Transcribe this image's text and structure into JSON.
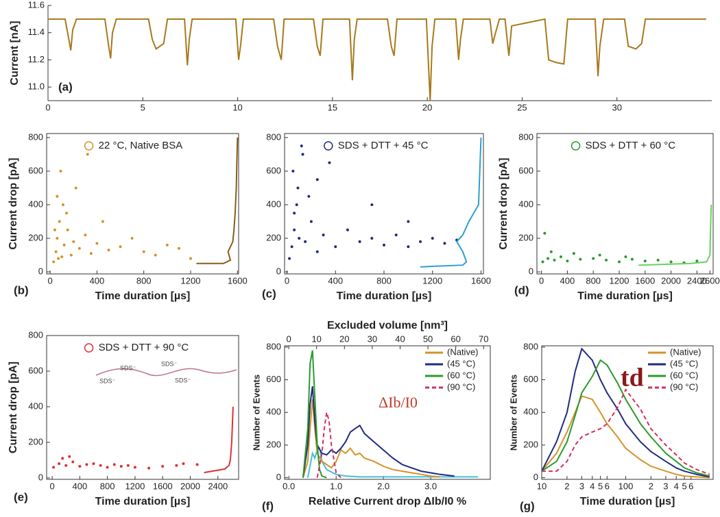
{
  "chart_data": [
    {
      "type": "line",
      "panel_label": "(a)",
      "ylabel": "Current [nA]",
      "color": "#a8781c",
      "x": [
        0,
        0.9,
        1.1,
        1.2,
        1.3,
        1.5,
        3.0,
        3.2,
        3.3,
        3.4,
        3.6,
        5.3,
        5.5,
        5.7,
        5.9,
        6.1,
        6.3,
        7.2,
        7.35,
        7.45,
        7.6,
        9.9,
        10.05,
        10.15,
        10.3,
        11.9,
        12.1,
        12.3,
        12.45,
        14.0,
        14.2,
        14.35,
        14.5,
        15.9,
        16.05,
        16.15,
        16.3,
        17.9,
        18.1,
        18.25,
        18.4,
        19.95,
        20.15,
        20.25,
        20.4,
        21.5,
        21.65,
        21.75,
        21.9,
        23.3,
        23.45,
        23.6,
        23.8,
        24.1,
        24.3,
        24.45,
        26.2,
        26.4,
        26.8,
        27.2,
        27.4,
        28.85,
        29.0,
        29.1,
        29.3,
        30.4,
        30.6,
        31.0,
        31.3,
        31.5,
        34.7
      ],
      "values": [
        11.5,
        11.5,
        11.35,
        11.27,
        11.42,
        11.5,
        11.5,
        11.3,
        11.21,
        11.4,
        11.5,
        11.5,
        11.35,
        11.28,
        11.3,
        11.32,
        11.5,
        11.5,
        11.16,
        11.35,
        11.5,
        11.5,
        11.2,
        11.3,
        11.5,
        11.5,
        11.3,
        11.2,
        11.5,
        11.5,
        11.3,
        11.23,
        11.5,
        11.5,
        11.05,
        11.35,
        11.5,
        11.5,
        11.3,
        11.23,
        11.5,
        11.5,
        10.9,
        11.3,
        11.5,
        11.5,
        11.2,
        11.35,
        11.5,
        11.5,
        11.32,
        11.4,
        11.5,
        11.5,
        11.23,
        11.45,
        11.5,
        11.2,
        11.18,
        11.17,
        11.5,
        11.5,
        11.08,
        11.3,
        11.5,
        11.5,
        11.3,
        11.28,
        11.32,
        11.5,
        11.5
      ],
      "xlim": [
        0,
        35
      ],
      "xticks": [
        0,
        5,
        10,
        15,
        20,
        25,
        30
      ],
      "ylim": [
        10.9,
        11.6
      ],
      "yticks": [
        {
          "value": 11,
          "label": "11.0"
        },
        11.2,
        11.4,
        11.6
      ]
    },
    {
      "type": "scatter",
      "panel_label": "(b)",
      "xlabel": "Time duration [µs]",
      "ylabel": "Current drop [pA]",
      "legend": "upper center",
      "series": [
        {
          "name": "22 °C, Native BSA",
          "color": "#d4922a",
          "x": [
            30,
            50,
            60,
            80,
            100,
            120,
            150,
            180,
            200,
            250,
            300,
            350,
            400,
            450,
            500,
            600,
            700,
            800,
            900,
            1000,
            1100,
            1200,
            60,
            90,
            140,
            220,
            320,
            70,
            40,
            110
          ],
          "values": [
            60,
            120,
            200,
            300,
            90,
            160,
            250,
            100,
            180,
            140,
            220,
            110,
            170,
            300,
            130,
            150,
            200,
            120,
            100,
            160,
            140,
            80,
            450,
            600,
            350,
            500,
            700,
            80,
            250,
            400
          ]
        },
        {
          "style": "line",
          "color": "#8a5a1a",
          "x": [
            1250,
            1480,
            1540,
            1520,
            1560,
            1570,
            1580,
            1590,
            1595,
            1600
          ],
          "values": [
            50,
            50,
            70,
            120,
            180,
            250,
            350,
            500,
            650,
            800
          ]
        }
      ],
      "xlim": [
        -30,
        1610
      ],
      "xticks": [
        0,
        400,
        800,
        1200,
        1600
      ],
      "ylim": [
        -12,
        824
      ],
      "yticks": [
        0,
        200,
        400,
        600,
        800
      ]
    },
    {
      "type": "scatter",
      "panel_label": "(c)",
      "xlabel": "Time duration [µs]",
      "legend": "upper center",
      "series": [
        {
          "name": "SDS + DTT + 45 °C",
          "color": "#1f2a80",
          "x": [
            20,
            40,
            60,
            80,
            100,
            150,
            200,
            250,
            300,
            400,
            500,
            600,
            700,
            800,
            900,
            1000,
            1100,
            1200,
            1300,
            1400,
            50,
            90,
            130,
            180,
            250,
            350,
            120,
            60,
            700,
            1000
          ],
          "values": [
            80,
            150,
            250,
            400,
            200,
            180,
            300,
            120,
            220,
            150,
            250,
            180,
            200,
            160,
            220,
            150,
            180,
            200,
            170,
            190,
            600,
            500,
            700,
            450,
            550,
            650,
            750,
            350,
            400,
            300
          ]
        },
        {
          "style": "line",
          "color": "#2aa0d0",
          "x": [
            1100,
            1450,
            1480,
            1450,
            1400,
            1450,
            1500,
            1580,
            1590,
            1600
          ],
          "values": [
            30,
            40,
            60,
            120,
            180,
            220,
            300,
            400,
            600,
            800
          ]
        }
      ],
      "xlim": [
        -20,
        1620
      ],
      "xticks": [
        0,
        400,
        800,
        1200,
        1600
      ],
      "ylim": [
        -12,
        824
      ],
      "yticks": [
        0,
        200,
        400,
        600,
        800
      ]
    },
    {
      "type": "scatter",
      "panel_label": "(d)",
      "xlabel": "Time duration [µs]",
      "ylabel": "Current drop [pA]",
      "legend": "upper center",
      "series": [
        {
          "name": "SDS + DTT + 60 °C",
          "color": "#2a9a2a",
          "x": [
            20,
            100,
            200,
            300,
            400,
            600,
            800,
            1000,
            1200,
            1400,
            1600,
            1800,
            2000,
            2200,
            2400,
            50,
            150,
            500,
            900,
            1300
          ],
          "values": [
            60,
            80,
            70,
            90,
            65,
            75,
            80,
            70,
            60,
            75,
            65,
            70,
            60,
            55,
            65,
            230,
            120,
            110,
            100,
            90
          ]
        },
        {
          "style": "line",
          "color": "#6ad060",
          "x": [
            1500,
            2300,
            2550,
            2600,
            2610,
            2620
          ],
          "values": [
            40,
            50,
            60,
            100,
            250,
            400
          ]
        }
      ],
      "xlim": [
        -70,
        2650
      ],
      "xticks": [
        0,
        400,
        800,
        1200,
        1600,
        2000,
        2400,
        2600
      ],
      "ylim": [
        -12,
        824
      ],
      "yticks": [
        0,
        200,
        400,
        600,
        800
      ]
    },
    {
      "type": "scatter",
      "panel_label": "(e)",
      "xlabel": "Time duration [µs]",
      "ylabel": "Current drop [pA]",
      "legend": "upper center",
      "annotations": [
        "SDS⁻",
        "SDS⁻",
        "SDS⁻",
        "SDS⁻"
      ],
      "series": [
        {
          "name": "SDS + DTT + 90 °C",
          "color": "#e03030",
          "x": [
            20,
            100,
            200,
            300,
            400,
            500,
            600,
            700,
            800,
            900,
            1000,
            1100,
            1200,
            1400,
            1600,
            1800,
            1900,
            2100,
            250,
            150
          ],
          "values": [
            60,
            80,
            70,
            90,
            65,
            75,
            80,
            70,
            60,
            75,
            65,
            70,
            60,
            55,
            65,
            70,
            80,
            75,
            120,
            110
          ]
        },
        {
          "style": "line",
          "color": "#e03030",
          "x": [
            2200,
            2500,
            2560,
            2580,
            2600,
            2610,
            2620
          ],
          "values": [
            30,
            50,
            70,
            100,
            200,
            300,
            400
          ]
        }
      ],
      "xlim": [
        -80,
        2700
      ],
      "xticks": [
        0,
        400,
        800,
        1200,
        1600,
        2000,
        2400
      ],
      "ylim": [
        -8,
        800
      ],
      "yticks": [
        0,
        200,
        400,
        600,
        800
      ]
    },
    {
      "type": "line",
      "panel_label": "(f)",
      "xlabel": "Relative Current drop ΔIb/I0 %",
      "ylabel": "Number of Events",
      "x2label": "Excluded volume [nm³]",
      "annotation": "ΔIb/I0",
      "legend": "upper right",
      "series": [
        {
          "color": "#40c0d8",
          "x": [
            0.4,
            0.5,
            0.55,
            0.6,
            0.65,
            0.7,
            0.8,
            1.0,
            1.2,
            1.5,
            2.0,
            2.5,
            3.0,
            3.5,
            4.0
          ],
          "values": [
            0,
            150,
            120,
            170,
            180,
            100,
            50,
            20,
            10,
            5,
            5,
            5,
            5,
            5,
            5
          ]
        },
        {
          "name": "(Native)",
          "color": "#d4922a",
          "x": [
            0.3,
            0.4,
            0.45,
            0.5,
            0.55,
            0.6,
            0.7,
            0.8,
            0.9,
            1.0,
            1.1,
            1.2,
            1.3,
            1.4,
            1.5,
            1.6,
            1.8,
            2.0,
            2.2,
            2.4,
            2.6,
            2.8,
            3.0,
            3.2
          ],
          "values": [
            0,
            100,
            300,
            480,
            300,
            150,
            100,
            80,
            60,
            100,
            170,
            150,
            180,
            140,
            150,
            120,
            100,
            70,
            50,
            40,
            30,
            20,
            10,
            5
          ]
        },
        {
          "name": "(45 °C)",
          "color": "#1f2a80",
          "x": [
            0.3,
            0.4,
            0.45,
            0.5,
            0.55,
            0.6,
            0.7,
            0.8,
            0.9,
            1.0,
            1.1,
            1.2,
            1.3,
            1.4,
            1.5,
            1.6,
            1.8,
            2.0,
            2.2,
            2.4,
            2.6,
            2.8,
            3.0,
            3.2,
            3.5
          ],
          "values": [
            0,
            200,
            450,
            560,
            350,
            200,
            150,
            140,
            170,
            150,
            180,
            220,
            280,
            300,
            320,
            270,
            220,
            170,
            120,
            80,
            60,
            40,
            30,
            20,
            10
          ]
        },
        {
          "name": "(60 °C)",
          "color": "#2a9a2a",
          "x": [
            0.3,
            0.4,
            0.45,
            0.5,
            0.55,
            0.6,
            0.65,
            0.7,
            0.8
          ],
          "values": [
            0,
            300,
            700,
            780,
            500,
            200,
            50,
            10,
            0
          ]
        },
        {
          "name": "(90 °C)",
          "color": "#d0305a",
          "dash": true,
          "x": [
            0.6,
            0.7,
            0.75,
            0.8,
            0.85,
            0.9,
            1.0,
            1.1
          ],
          "values": [
            0,
            150,
            300,
            400,
            350,
            200,
            30,
            0
          ]
        }
      ],
      "xlim": [
        -0.09,
        4.26
      ],
      "xticks": [
        {
          "value": 0,
          "label": "0.0"
        },
        {
          "value": 1,
          "label": "1.0"
        },
        {
          "value": 2,
          "label": "2.0"
        },
        {
          "value": 3,
          "label": "3.0"
        }
      ],
      "x2lim": [
        -1.5,
        72.4
      ],
      "x2ticks": [
        0,
        10,
        20,
        30,
        40,
        50,
        60,
        70
      ],
      "ylim": [
        -10,
        808
      ],
      "yticks": [
        0,
        200,
        400,
        600,
        800
      ]
    },
    {
      "type": "line",
      "panel_label": "(g)",
      "xlabel": "Time duration [µs]",
      "ylabel": "Number of Events",
      "annotation": "td",
      "legend": "upper right",
      "xlog": true,
      "x": [
        10,
        15,
        20,
        25,
        30,
        40,
        50,
        60,
        80,
        100,
        150,
        200,
        300,
        400,
        500,
        700,
        1000
      ],
      "series": [
        {
          "name": "(Native)",
          "color": "#d4922a",
          "values": [
            40,
            150,
            280,
            400,
            500,
            480,
            400,
            330,
            250,
            180,
            110,
            70,
            40,
            20,
            10,
            5,
            0
          ]
        },
        {
          "name": "(45 °C)",
          "color": "#1f2a80",
          "values": [
            40,
            220,
            400,
            650,
            790,
            720,
            600,
            520,
            420,
            330,
            220,
            160,
            100,
            60,
            40,
            20,
            5
          ]
        },
        {
          "name": "(60 °C)",
          "color": "#2a9a2a",
          "values": [
            40,
            100,
            220,
            380,
            520,
            620,
            720,
            690,
            580,
            480,
            330,
            250,
            150,
            100,
            60,
            30,
            10
          ]
        },
        {
          "name": "(90 °C)",
          "color": "#d0305a",
          "dash": true,
          "values": [
            40,
            40,
            100,
            200,
            250,
            280,
            300,
            330,
            430,
            540,
            420,
            300,
            200,
            140,
            90,
            50,
            20
          ]
        }
      ],
      "xlim": [
        10,
        1100
      ],
      "xticks": [
        10,
        {
          "value": 20,
          "label": "2"
        },
        {
          "value": 30,
          "label": "3"
        },
        {
          "value": 40,
          "label": "4"
        },
        {
          "value": 50,
          "label": "5"
        },
        {
          "value": 60,
          "label": "6"
        },
        100,
        {
          "value": 200,
          "label": "2"
        },
        {
          "value": 300,
          "label": "3"
        },
        {
          "value": 400,
          "label": "4"
        },
        {
          "value": 500,
          "label": "5"
        },
        {
          "value": 600,
          "label": "6"
        }
      ],
      "ylim": [
        -10,
        808
      ],
      "yticks": [
        0,
        200,
        400,
        600,
        800
      ]
    }
  ]
}
